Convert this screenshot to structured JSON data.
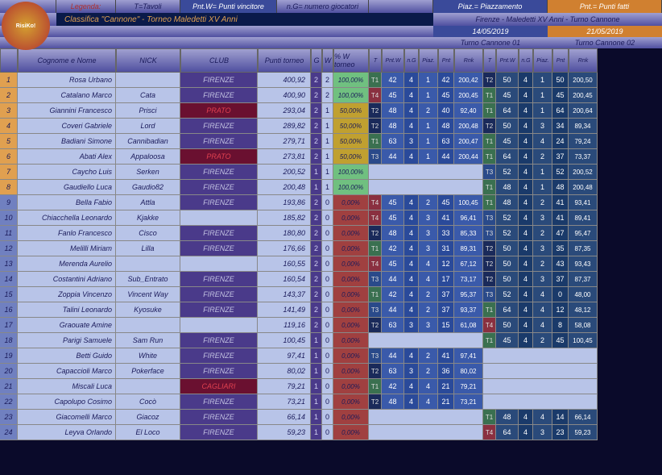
{
  "legend": {
    "label": "Legenda:",
    "t": "T=Tavoli",
    "pntw": "Pnt.W= Punti vincitore",
    "ng": "n.G= numero giocatori",
    "piaz": "Piaz.= Piazzamento",
    "pnt": "Pnt.= Punti fatti"
  },
  "title": "Classifica \"Cannone\" - Torneo Maledetti XV Anni",
  "event": "Firenze - Maledetti XV Anni - Turno Cannone",
  "dates": {
    "d1": "14/05/2019",
    "d2": "21/05/2019"
  },
  "turns": {
    "t1": "Turno Cannone 01",
    "t2": "Turno Cannone 02"
  },
  "headers": {
    "rank": "",
    "name": "Cognome e Nome",
    "nick": "NICK",
    "club": "CLUB",
    "pt": "Punti torneo",
    "g": "G",
    "w": "W",
    "pctw": "% W torneo",
    "t": "T",
    "pntw": "Pnt.W",
    "ng": "n.G",
    "piaz": "Piaz.",
    "pnt": "Pnt",
    "rnk": "Rnk"
  },
  "colors": {
    "topGrad1": "#a0a0d0",
    "topGrad2": "#5050a0",
    "blueHdr": "#3a4a9a",
    "orangeHdr": "#d08030",
    "darkBlue": "#0a1a4a",
    "rankOrange": "#e0a050",
    "rankBlue": "#7080c0",
    "cellLight": "#b8c4e8",
    "cellPurple": "#4a3a8a",
    "cellDarkRed": "#6a1030",
    "green": "#70c080",
    "red": "#a04040",
    "yellow": "#c0a030",
    "tGreen": "#3a7050",
    "tRed": "#8a3040",
    "tBlue": "#2a4a8a",
    "tDark": "#1a2a5a",
    "turn1a": "#3a5aaa",
    "turn1b": "#2a4a9a",
    "turn2a": "#2a4a7a",
    "turn2b": "#1a3a6a"
  },
  "rows": [
    {
      "r": 1,
      "name": "Rosa Urbano",
      "nick": "",
      "club": "FIRENZE",
      "pt": "400,92",
      "g": 2,
      "w": 2,
      "pct": "100,00%",
      "pc": "g",
      "t1": {
        "t": "T1",
        "tc": "g",
        "pw": 42,
        "ng": 4,
        "pz": 1,
        "pt": 42,
        "rk": "200,42"
      },
      "t2": {
        "t": "T2",
        "tc": "d",
        "pw": 50,
        "ng": 4,
        "pz": 1,
        "pt": 50,
        "rk": "200,50"
      }
    },
    {
      "r": 2,
      "name": "Catalano Marco",
      "nick": "Cata",
      "club": "FIRENZE",
      "pt": "400,90",
      "g": 2,
      "w": 2,
      "pct": "100,00%",
      "pc": "g",
      "t1": {
        "t": "T4",
        "tc": "r",
        "pw": 45,
        "ng": 4,
        "pz": 1,
        "pt": 45,
        "rk": "200,45"
      },
      "t2": {
        "t": "T1",
        "tc": "g",
        "pw": 45,
        "ng": 4,
        "pz": 1,
        "pt": 45,
        "rk": "200,45"
      }
    },
    {
      "r": 3,
      "name": "Giannini Francesco",
      "nick": "Prisci",
      "club": "PRATO",
      "clubC": "r",
      "pt": "293,04",
      "g": 2,
      "w": 1,
      "pct": "50,00%",
      "pc": "y",
      "t1": {
        "t": "T2",
        "tc": "d",
        "pw": 48,
        "ng": 4,
        "pz": 2,
        "pt": 40,
        "rk": "92,40"
      },
      "t2": {
        "t": "T1",
        "tc": "g",
        "pw": 64,
        "ng": 4,
        "pz": 1,
        "pt": 64,
        "rk": "200,64"
      }
    },
    {
      "r": 4,
      "name": "Coveri Gabriele",
      "nick": "Lord",
      "club": "FIRENZE",
      "pt": "289,82",
      "g": 2,
      "w": 1,
      "pct": "50,00%",
      "pc": "y",
      "t1": {
        "t": "T2",
        "tc": "d",
        "pw": 48,
        "ng": 4,
        "pz": 1,
        "pt": 48,
        "rk": "200,48"
      },
      "t2": {
        "t": "T2",
        "tc": "d",
        "pw": 50,
        "ng": 4,
        "pz": 3,
        "pt": 34,
        "rk": "89,34"
      }
    },
    {
      "r": 5,
      "name": "Badiani Simone",
      "nick": "Cannibadian",
      "club": "FIRENZE",
      "pt": "279,71",
      "g": 2,
      "w": 1,
      "pct": "50,00%",
      "pc": "y",
      "t1": {
        "t": "T1",
        "tc": "g",
        "pw": 63,
        "ng": 3,
        "pz": 1,
        "pt": 63,
        "rk": "200,47"
      },
      "t2": {
        "t": "T1",
        "tc": "g",
        "pw": 45,
        "ng": 4,
        "pz": 4,
        "pt": 24,
        "rk": "79,24"
      }
    },
    {
      "r": 6,
      "name": "Abati Alex",
      "nick": "Appaloosa",
      "club": "PRATO",
      "clubC": "r",
      "pt": "273,81",
      "g": 2,
      "w": 1,
      "pct": "50,00%",
      "pc": "y",
      "t1": {
        "t": "T3",
        "tc": "b",
        "pw": 44,
        "ng": 4,
        "pz": 1,
        "pt": 44,
        "rk": "200,44"
      },
      "t2": {
        "t": "T1",
        "tc": "g",
        "pw": 64,
        "ng": 4,
        "pz": 2,
        "pt": 37,
        "rk": "73,37"
      }
    },
    {
      "r": 7,
      "name": "Caycho Luis",
      "nick": "Serken",
      "club": "FIRENZE",
      "pt": "200,52",
      "g": 1,
      "w": 1,
      "pct": "100,00%",
      "pc": "g",
      "t1": null,
      "t2": {
        "t": "T3",
        "tc": "b",
        "pw": 52,
        "ng": 4,
        "pz": 1,
        "pt": 52,
        "rk": "200,52"
      }
    },
    {
      "r": 8,
      "name": "Gaudiello Luca",
      "nick": "Gaudio82",
      "club": "FIRENZE",
      "pt": "200,48",
      "g": 1,
      "w": 1,
      "pct": "100,00%",
      "pc": "g",
      "t1": null,
      "t2": {
        "t": "T1",
        "tc": "g",
        "pw": 48,
        "ng": 4,
        "pz": 1,
        "pt": 48,
        "rk": "200,48"
      }
    },
    {
      "r": 9,
      "name": "Bella Fabio",
      "nick": "Attla",
      "club": "FIRENZE",
      "pt": "193,86",
      "g": 2,
      "w": 0,
      "pct": "0,00%",
      "pc": "r",
      "t1": {
        "t": "T4",
        "tc": "r",
        "pw": 45,
        "ng": 4,
        "pz": 2,
        "pt": 45,
        "rk": "100,45"
      },
      "t2": {
        "t": "T1",
        "tc": "g",
        "pw": 48,
        "ng": 4,
        "pz": 2,
        "pt": 41,
        "rk": "93,41"
      }
    },
    {
      "r": 10,
      "name": "Chiacchella Leonardo",
      "nick": "Kjakke",
      "club": "",
      "pt": "185,82",
      "g": 2,
      "w": 0,
      "pct": "0,00%",
      "pc": "r",
      "t1": {
        "t": "T4",
        "tc": "r",
        "pw": 45,
        "ng": 4,
        "pz": 3,
        "pt": 41,
        "rk": "96,41"
      },
      "t2": {
        "t": "T3",
        "tc": "b",
        "pw": 52,
        "ng": 4,
        "pz": 3,
        "pt": 41,
        "rk": "89,41"
      }
    },
    {
      "r": 11,
      "name": "Fanlo Francesco",
      "nick": "Cisco",
      "club": "FIRENZE",
      "pt": "180,80",
      "g": 2,
      "w": 0,
      "pct": "0,00%",
      "pc": "r",
      "t1": {
        "t": "T2",
        "tc": "d",
        "pw": 48,
        "ng": 4,
        "pz": 3,
        "pt": 33,
        "rk": "85,33"
      },
      "t2": {
        "t": "T3",
        "tc": "b",
        "pw": 52,
        "ng": 4,
        "pz": 2,
        "pt": 47,
        "rk": "95,47"
      }
    },
    {
      "r": 12,
      "name": "Melilli Miriam",
      "nick": "Lilla",
      "club": "FIRENZE",
      "pt": "176,66",
      "g": 2,
      "w": 0,
      "pct": "0,00%",
      "pc": "r",
      "t1": {
        "t": "T1",
        "tc": "g",
        "pw": 42,
        "ng": 4,
        "pz": 3,
        "pt": 31,
        "rk": "89,31"
      },
      "t2": {
        "t": "T2",
        "tc": "d",
        "pw": 50,
        "ng": 4,
        "pz": 3,
        "pt": 35,
        "rk": "87,35"
      }
    },
    {
      "r": 13,
      "name": "Merenda Aurelio",
      "nick": "",
      "club": "",
      "pt": "160,55",
      "g": 2,
      "w": 0,
      "pct": "0,00%",
      "pc": "r",
      "t1": {
        "t": "T4",
        "tc": "r",
        "pw": 45,
        "ng": 4,
        "pz": 4,
        "pt": 12,
        "rk": "67,12"
      },
      "t2": {
        "t": "T2",
        "tc": "d",
        "pw": 50,
        "ng": 4,
        "pz": 2,
        "pt": 43,
        "rk": "93,43"
      }
    },
    {
      "r": 14,
      "name": "Costantini Adriano",
      "nick": "Sub_Entrato",
      "club": "FIRENZE",
      "pt": "160,54",
      "g": 2,
      "w": 0,
      "pct": "0,00%",
      "pc": "r",
      "t1": {
        "t": "T3",
        "tc": "b",
        "pw": 44,
        "ng": 4,
        "pz": 4,
        "pt": 17,
        "rk": "73,17"
      },
      "t2": {
        "t": "T2",
        "tc": "d",
        "pw": 50,
        "ng": 4,
        "pz": 3,
        "pt": 37,
        "rk": "87,37"
      }
    },
    {
      "r": 15,
      "name": "Zoppia Vincenzo",
      "nick": "Vincent Way",
      "club": "FIRENZE",
      "pt": "143,37",
      "g": 2,
      "w": 0,
      "pct": "0,00%",
      "pc": "r",
      "t1": {
        "t": "T1",
        "tc": "g",
        "pw": 42,
        "ng": 4,
        "pz": 2,
        "pt": 37,
        "rk": "95,37"
      },
      "t2": {
        "t": "T3",
        "tc": "b",
        "pw": 52,
        "ng": 4,
        "pz": 4,
        "pt": 0,
        "rk": "48,00"
      }
    },
    {
      "r": 16,
      "name": "Talini Leonardo",
      "nick": "Kyosuke",
      "club": "FIRENZE",
      "pt": "141,49",
      "g": 2,
      "w": 0,
      "pct": "0,00%",
      "pc": "r",
      "t1": {
        "t": "T3",
        "tc": "b",
        "pw": 44,
        "ng": 4,
        "pz": 2,
        "pt": 37,
        "rk": "93,37"
      },
      "t2": {
        "t": "T1",
        "tc": "g",
        "pw": 64,
        "ng": 4,
        "pz": 4,
        "pt": 12,
        "rk": "48,12"
      }
    },
    {
      "r": 17,
      "name": "Graouate Amine",
      "nick": "",
      "club": "",
      "pt": "119,16",
      "g": 2,
      "w": 0,
      "pct": "0,00%",
      "pc": "r",
      "t1": {
        "t": "T2",
        "tc": "d",
        "pw": 63,
        "ng": 3,
        "pz": 3,
        "pt": 15,
        "rk": "61,08"
      },
      "t2": {
        "t": "T4",
        "tc": "r",
        "pw": 50,
        "ng": 4,
        "pz": 4,
        "pt": 8,
        "rk": "58,08"
      }
    },
    {
      "r": 18,
      "name": "Parigi Samuele",
      "nick": "Sam Run",
      "club": "FIRENZE",
      "pt": "100,45",
      "g": 1,
      "w": 0,
      "pct": "0,00%",
      "pc": "r",
      "t1": null,
      "t2": {
        "t": "T1",
        "tc": "g",
        "pw": 45,
        "ng": 4,
        "pz": 2,
        "pt": 45,
        "rk": "100,45"
      }
    },
    {
      "r": 19,
      "name": "Betti Guido",
      "nick": "White",
      "club": "FIRENZE",
      "pt": "97,41",
      "g": 1,
      "w": 0,
      "pct": "0,00%",
      "pc": "r",
      "t1": {
        "t": "T3",
        "tc": "b",
        "pw": 44,
        "ng": 4,
        "pz": 2,
        "pt": 41,
        "rk": "97,41"
      },
      "t2": null
    },
    {
      "r": 20,
      "name": "Capaccioli Marco",
      "nick": "Pokerface",
      "club": "FIRENZE",
      "pt": "80,02",
      "g": 1,
      "w": 0,
      "pct": "0,00%",
      "pc": "r",
      "t1": {
        "t": "T2",
        "tc": "d",
        "pw": 63,
        "ng": 3,
        "pz": 2,
        "pt": 36,
        "rk": "80,02"
      },
      "t2": null
    },
    {
      "r": 21,
      "name": "Miscali Luca",
      "nick": "",
      "club": "CAGLIARI",
      "clubC": "r",
      "pt": "79,21",
      "g": 1,
      "w": 0,
      "pct": "0,00%",
      "pc": "r",
      "t1": {
        "t": "T1",
        "tc": "g",
        "pw": 42,
        "ng": 4,
        "pz": 4,
        "pt": 21,
        "rk": "79,21"
      },
      "t2": null
    },
    {
      "r": 22,
      "name": "Capolupo Cosimo",
      "nick": "Cocò",
      "club": "FIRENZE",
      "pt": "73,21",
      "g": 1,
      "w": 0,
      "pct": "0,00%",
      "pc": "r",
      "t1": {
        "t": "T2",
        "tc": "d",
        "pw": 48,
        "ng": 4,
        "pz": 4,
        "pt": 21,
        "rk": "73,21"
      },
      "t2": null
    },
    {
      "r": 23,
      "name": "Giacomelli Marco",
      "nick": "Giacoz",
      "club": "FIRENZE",
      "pt": "66,14",
      "g": 1,
      "w": 0,
      "pct": "0,00%",
      "pc": "r",
      "t1": null,
      "t2": {
        "t": "T1",
        "tc": "g",
        "pw": 48,
        "ng": 4,
        "pz": 4,
        "pt": 14,
        "rk": "66,14"
      }
    },
    {
      "r": 24,
      "name": "Leyva Orlando",
      "nick": "El Loco",
      "club": "FIRENZE",
      "pt": "59,23",
      "g": 1,
      "w": 0,
      "pct": "0,00%",
      "pc": "r",
      "t1": null,
      "t2": {
        "t": "T4",
        "tc": "r",
        "pw": 64,
        "ng": 4,
        "pz": 3,
        "pt": 23,
        "rk": "59,23"
      }
    }
  ],
  "widths": {
    "rank": 22,
    "name": 122,
    "nick": 80,
    "club": 96,
    "pt": 66,
    "g": 14,
    "w": 14,
    "pct": 44,
    "tT": 16,
    "tPw": 28,
    "tNg": 18,
    "tPz": 24,
    "tPt": 20,
    "tRk": 36
  }
}
